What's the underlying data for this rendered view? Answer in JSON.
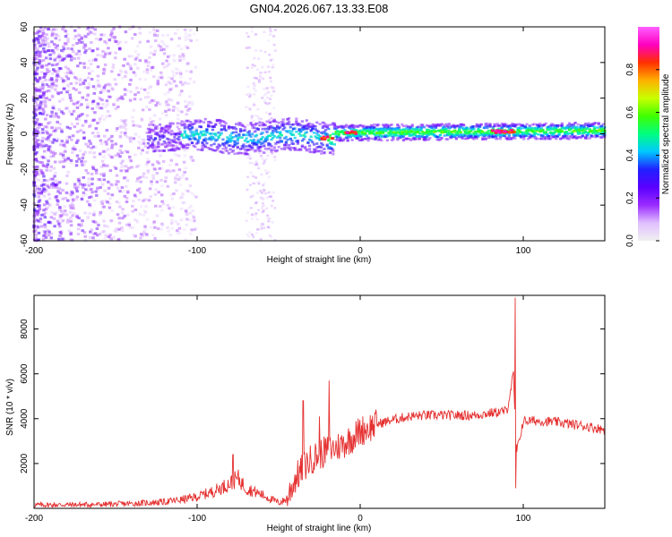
{
  "title": "GN04.2026.067.13.33.E08",
  "chart_data": [
    {
      "type": "heatmap",
      "panel": "spectrogram",
      "xlabel": "Height of straight line (km)",
      "ylabel": "Frequency (Hz)",
      "xlim": [
        -200,
        150
      ],
      "ylim": [
        -60,
        60
      ],
      "xticks": [
        -200,
        -100,
        0,
        100
      ],
      "yticks": [
        -60,
        -40,
        -20,
        0,
        20,
        40,
        60
      ],
      "colorbar": {
        "label": "Normalized spectral amplitude",
        "range": [
          0,
          1
        ],
        "ticks": [
          "0.0",
          "0.2",
          "0.4",
          "0.6",
          "0.8"
        ],
        "colors": [
          "#f0f0f0",
          "#e0c0ff",
          "#9a2cff",
          "#5a00ff",
          "#2020ff",
          "#00c8ff",
          "#00ff80",
          "#40ff00",
          "#c8ff00",
          "#ffb000",
          "#ff3000",
          "#ff00c0",
          "#ff60ff"
        ]
      },
      "features": [
        {
          "name": "broadband noise",
          "x_range": [
            -200,
            -120
          ],
          "freq_range": [
            -60,
            60
          ],
          "amplitude": 0.15
        },
        {
          "name": "noise column",
          "x_range": [
            -70,
            -52
          ],
          "freq_range": [
            -60,
            60
          ],
          "amplitude": 0.08
        },
        {
          "name": "signal band",
          "x_range": [
            -130,
            150
          ],
          "center_freq": 0,
          "peak_x": [
            -20,
            -5,
            85,
            92
          ],
          "peak_amplitude": 0.95
        }
      ]
    },
    {
      "type": "line",
      "panel": "snr",
      "xlabel": "Height of straight line (km)",
      "ylabel": "SNR (10 * v/v)",
      "xlim": [
        -200,
        150
      ],
      "ylim": [
        0,
        9500
      ],
      "xticks": [
        -200,
        -100,
        0,
        100
      ],
      "yticks": [
        2000,
        4000,
        6000,
        8000
      ],
      "color": "#e53030",
      "x": [
        -200,
        -180,
        -160,
        -140,
        -120,
        -110,
        -100,
        -90,
        -80,
        -75,
        -70,
        -60,
        -50,
        -45,
        -40,
        -35,
        -30,
        -25,
        -20,
        -15,
        -10,
        -5,
        0,
        5,
        10,
        20,
        30,
        40,
        50,
        60,
        70,
        80,
        90,
        94,
        95,
        96,
        100,
        110,
        120,
        130,
        140,
        150
      ],
      "values": [
        150,
        160,
        170,
        210,
        290,
        380,
        520,
        760,
        1100,
        1350,
        900,
        600,
        250,
        400,
        1300,
        1800,
        2200,
        2400,
        2600,
        2700,
        2900,
        3150,
        3450,
        3600,
        3750,
        3950,
        4100,
        4150,
        4150,
        4150,
        4150,
        4250,
        4350,
        6000,
        3600,
        2500,
        3900,
        3900,
        3850,
        3750,
        3650,
        3500
      ],
      "spikes": [
        {
          "x": -35,
          "value": 4800
        },
        {
          "x": -25,
          "value": 4100
        },
        {
          "x": -19,
          "value": 5700
        },
        {
          "x": -78,
          "value": 2400
        },
        {
          "x": 95,
          "value": 9400
        },
        {
          "x": 95.5,
          "value": 900
        }
      ]
    }
  ]
}
